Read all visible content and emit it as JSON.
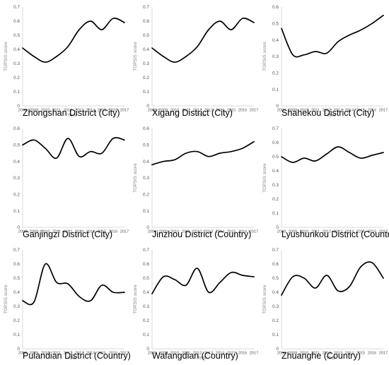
{
  "chart_data": [
    {
      "type": "line",
      "title": "Zhongshan District (City)",
      "xlabel": "Year",
      "ylabel": "TOPSIS score",
      "x": [
        2008,
        2009,
        2010,
        2011,
        2012,
        2013,
        2014,
        2015,
        2016,
        2017
      ],
      "yticks": [
        "0",
        "0.1",
        "0.2",
        "0.3",
        "0.4",
        "0.5",
        "0.6",
        "0.7"
      ],
      "ylim": [
        0,
        0.7
      ],
      "series": [
        {
          "values": [
            0.41,
            0.35,
            0.31,
            0.35,
            0.42,
            0.54,
            0.6,
            0.54,
            0.62,
            0.59
          ]
        }
      ]
    },
    {
      "type": "line",
      "title": "Xigang District (City)",
      "xlabel": "Year",
      "ylabel": "TOPSIS score",
      "x": [
        2008,
        2009,
        2010,
        2011,
        2012,
        2013,
        2014,
        2015,
        2016,
        2017
      ],
      "yticks": [
        "0",
        "0.1",
        "0.2",
        "0.3",
        "0.4",
        "0.5",
        "0.6",
        "0.7"
      ],
      "ylim": [
        0,
        0.7
      ],
      "series": [
        {
          "values": [
            0.41,
            0.35,
            0.31,
            0.35,
            0.42,
            0.54,
            0.6,
            0.54,
            0.62,
            0.59
          ]
        }
      ]
    },
    {
      "type": "line",
      "title": "Shahekou District (City)",
      "xlabel": "Year",
      "ylabel": "TOPSIS score",
      "x": [
        2008,
        2009,
        2010,
        2011,
        2012,
        2013,
        2014,
        2015,
        2016,
        2017
      ],
      "yticks": [
        "0",
        "0.1",
        "0.2",
        "0.3",
        "0.4",
        "0.5",
        "0.6"
      ],
      "ylim": [
        0,
        0.6
      ],
      "series": [
        {
          "values": [
            0.47,
            0.31,
            0.31,
            0.33,
            0.32,
            0.39,
            0.43,
            0.46,
            0.5,
            0.55
          ]
        }
      ]
    },
    {
      "type": "line",
      "title": "Ganjingzi District (City)",
      "xlabel": "",
      "ylabel": "",
      "x": [
        2008,
        2009,
        2010,
        2011,
        2012,
        2013,
        2014,
        2015,
        2016,
        2017
      ],
      "yticks": [
        "0",
        "0.1",
        "0.2",
        "0.3",
        "0.4",
        "0.5",
        "0.6"
      ],
      "ylim": [
        0,
        0.6
      ],
      "series": [
        {
          "values": [
            0.5,
            0.53,
            0.48,
            0.42,
            0.54,
            0.43,
            0.46,
            0.45,
            0.54,
            0.53
          ]
        }
      ]
    },
    {
      "type": "line",
      "title": "Jinzhou District (Country)",
      "xlabel": "",
      "ylabel": "TOPSIS score",
      "x": [
        2008,
        2009,
        2010,
        2011,
        2012,
        2013,
        2014,
        2015,
        2016,
        2017
      ],
      "yticks": [
        "0",
        "0.1",
        "0.2",
        "0.3",
        "0.4",
        "0.5",
        "0.6"
      ],
      "ylim": [
        0,
        0.6
      ],
      "series": [
        {
          "values": [
            0.38,
            0.4,
            0.41,
            0.45,
            0.46,
            0.43,
            0.45,
            0.46,
            0.48,
            0.52
          ]
        }
      ]
    },
    {
      "type": "line",
      "title": "Lyushunkou District (Country)",
      "xlabel": "",
      "ylabel": "TOPSIS score",
      "x": [
        2008,
        2009,
        2010,
        2011,
        2012,
        2013,
        2014,
        2015,
        2016,
        2017
      ],
      "yticks": [
        "0",
        "0.1",
        "0.2",
        "0.3",
        "0.4",
        "0.5",
        "0.6",
        "0.7"
      ],
      "ylim": [
        0,
        0.7
      ],
      "series": [
        {
          "values": [
            0.5,
            0.46,
            0.49,
            0.47,
            0.52,
            0.57,
            0.53,
            0.49,
            0.51,
            0.53
          ]
        }
      ]
    },
    {
      "type": "line",
      "title": "Pulandian District (Country)",
      "xlabel": "Year",
      "ylabel": "TOPSIS score",
      "x": [
        2008,
        2009,
        2010,
        2011,
        2012,
        2013,
        2014,
        2015,
        2016,
        2017
      ],
      "yticks": [
        "0",
        "0.1",
        "0.2",
        "0.3",
        "0.4",
        "0.5",
        "0.6",
        "0.7"
      ],
      "ylim": [
        0,
        0.7
      ],
      "series": [
        {
          "values": [
            0.34,
            0.33,
            0.6,
            0.47,
            0.46,
            0.37,
            0.34,
            0.45,
            0.4,
            0.4
          ]
        }
      ]
    },
    {
      "type": "line",
      "title": "Wafangdian (Country)",
      "xlabel": "Year",
      "ylabel": "TOPSIS score",
      "x": [
        2008,
        2009,
        2010,
        2011,
        2012,
        2013,
        2014,
        2015,
        2016,
        2017
      ],
      "yticks": [
        "0",
        "0.1",
        "0.2",
        "0.3",
        "0.4",
        "0.5",
        "0.6",
        "0.7"
      ],
      "ylim": [
        0,
        0.7
      ],
      "series": [
        {
          "values": [
            0.39,
            0.51,
            0.49,
            0.45,
            0.57,
            0.4,
            0.47,
            0.54,
            0.52,
            0.51
          ]
        }
      ]
    },
    {
      "type": "line",
      "title": "Zhuanghe (Country)",
      "xlabel": "Year",
      "ylabel": "TOPSIS score",
      "x": [
        2008,
        2009,
        2010,
        2011,
        2012,
        2013,
        2014,
        2015,
        2016,
        2017
      ],
      "yticks": [
        "0",
        "0.1",
        "0.2",
        "0.3",
        "0.4",
        "0.5",
        "0.6",
        "0.7"
      ],
      "ylim": [
        0,
        0.7
      ],
      "series": [
        {
          "values": [
            0.38,
            0.51,
            0.5,
            0.43,
            0.52,
            0.41,
            0.44,
            0.58,
            0.61,
            0.5
          ]
        }
      ]
    }
  ]
}
